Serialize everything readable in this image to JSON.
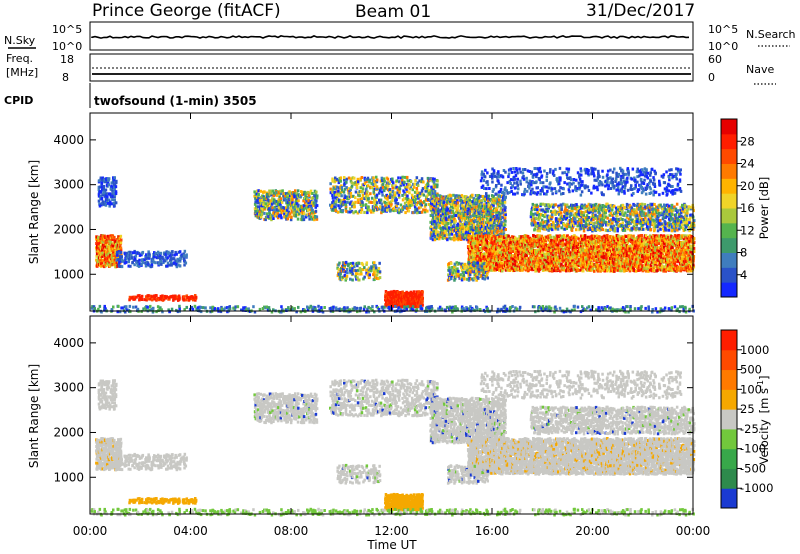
{
  "header": {
    "station": "Prince George (fitACF)",
    "beam": "Beam 01",
    "date": "31/Dec/2017"
  },
  "top_panels": {
    "nsky_label": "N.Sky",
    "nsky_ticks": [
      "10^5",
      "10^0"
    ],
    "nsearch_label": "N.Search",
    "nsearch_ticks": [
      "10^5",
      "10^0"
    ],
    "freq_label": "Freq.",
    "freq_unit": "[MHz]",
    "freq_ticks": [
      "18",
      "8"
    ],
    "nave_label": "Nave",
    "nave_ticks": [
      "60",
      "0"
    ],
    "cpid_label": "CPID",
    "cpid_text": "twofsound (1-min) 3505"
  },
  "chart_data": [
    {
      "type": "heatmap",
      "name_on_axis": "Power [dB]",
      "ylabel": "Slant Range [km]",
      "xlabel": "",
      "yticks": [
        "1000",
        "2000",
        "3000",
        "4000"
      ],
      "ylim": [
        180,
        4600
      ],
      "xticks": [
        "00:00",
        "04:00",
        "08:00",
        "12:00",
        "16:00",
        "20:00",
        "00:00"
      ],
      "xlim_hours": [
        0,
        24
      ],
      "colorbar": {
        "label": "Power [dB]",
        "ticks": [
          "4",
          "8",
          "12",
          "16",
          "20",
          "24",
          "28"
        ],
        "colors": [
          "#1428ff",
          "#2a52c8",
          "#3f7dbe",
          "#3d9a6c",
          "#55b44e",
          "#aac83c",
          "#f0d428",
          "#ffb400",
          "#ff7a00",
          "#ff4a00",
          "#ff1e00",
          "#e60000"
        ]
      }
    },
    {
      "type": "heatmap",
      "name_on_axis": "Velocity [m s^-1]",
      "ylabel": "Slant Range [km]",
      "xlabel": "Time UT",
      "yticks": [
        "1000",
        "2000",
        "3000",
        "4000"
      ],
      "ylim": [
        180,
        4600
      ],
      "xticks": [
        "00:00",
        "04:00",
        "08:00",
        "12:00",
        "16:00",
        "20:00",
        "00:00"
      ],
      "xlim_hours": [
        0,
        24
      ],
      "colorbar": {
        "label": "Velocity",
        "label_unit": "[m s",
        "label_exp": "-1",
        "ticks": [
          "1000",
          "500",
          "100",
          "25",
          "-25",
          "-100",
          "-500",
          "-1000"
        ],
        "colors": [
          "#1a3ad2",
          "#2e8a4c",
          "#38a84a",
          "#72c83c",
          "#c8c8c4",
          "#f5a800",
          "#ff7a00",
          "#ff4a00",
          "#ff1e00"
        ]
      }
    }
  ]
}
